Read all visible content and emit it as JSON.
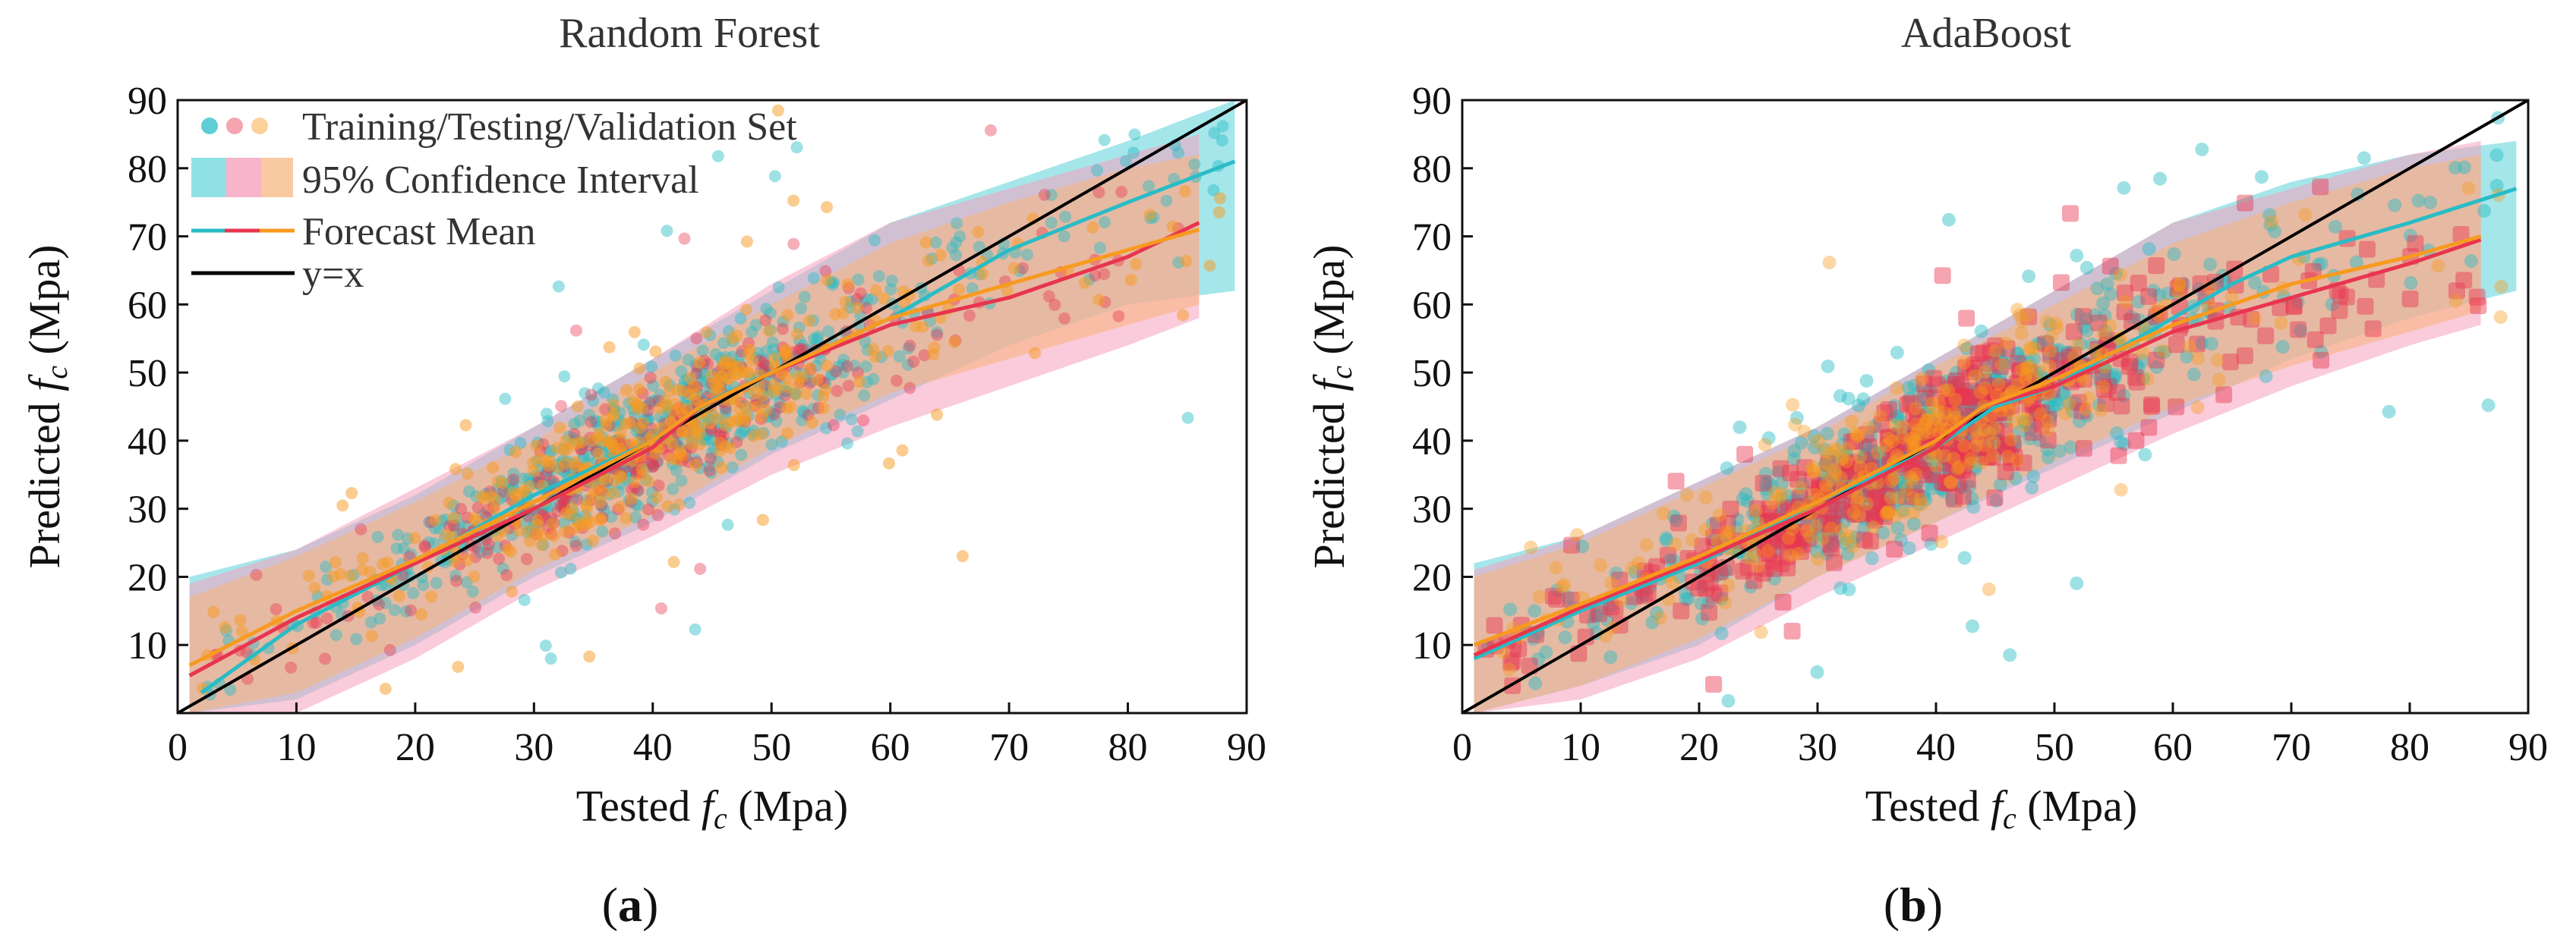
{
  "chart_data": [
    {
      "type": "scatter",
      "title": "Random Forest",
      "panel_label": {
        "open": "(",
        "letter": "a",
        "close": ")"
      },
      "xlabel": {
        "pre": "Tested ",
        "sym": "f",
        "sub": "c",
        "post": " (Mpa)"
      },
      "ylabel": {
        "pre": "Predicted ",
        "sym": "f",
        "sub": "c",
        "post": " (Mpa)"
      },
      "xlim": [
        0,
        90
      ],
      "ylim": [
        0,
        90
      ],
      "x_ticks": [
        "0",
        "10",
        "20",
        "30",
        "40",
        "50",
        "60",
        "70",
        "80",
        "90"
      ],
      "y_ticks": [
        "10",
        "20",
        "30",
        "40",
        "50",
        "60",
        "70",
        "80",
        "90"
      ],
      "legend": [
        "Training/Testing/Validation Set",
        "95% Confidence Interval",
        "Forecast Mean",
        "y=x"
      ],
      "series": [
        {
          "name": "Training forecast mean",
          "color": "#29bcc6",
          "mean": [
            [
              2,
              3
            ],
            [
              10,
              13
            ],
            [
              20,
              22
            ],
            [
              30,
              32
            ],
            [
              40,
              40
            ],
            [
              45,
              46
            ],
            [
              50,
              50
            ],
            [
              55,
              54
            ],
            [
              60,
              58
            ],
            [
              65,
              63
            ],
            [
              70,
              68
            ],
            [
              80,
              75
            ],
            [
              89,
              81
            ]
          ],
          "band_upper": [
            [
              1,
              20
            ],
            [
              10,
              24
            ],
            [
              20,
              32
            ],
            [
              30,
              42
            ],
            [
              40,
              52
            ],
            [
              50,
              62
            ],
            [
              60,
              72
            ],
            [
              70,
              78
            ],
            [
              80,
              84
            ],
            [
              89,
              90
            ]
          ],
          "band_lower": [
            [
              1,
              0
            ],
            [
              10,
              2
            ],
            [
              20,
              10
            ],
            [
              30,
              20
            ],
            [
              40,
              28
            ],
            [
              50,
              38
            ],
            [
              60,
              46
            ],
            [
              70,
              54
            ],
            [
              80,
              60
            ],
            [
              89,
              62
            ]
          ]
        },
        {
          "name": "Testing forecast mean",
          "color": "#e8354f",
          "mean": [
            [
              1,
              5.5
            ],
            [
              10,
              14
            ],
            [
              20,
              22
            ],
            [
              30,
              30
            ],
            [
              40,
              39
            ],
            [
              44,
              45
            ],
            [
              50,
              50
            ],
            [
              60,
              57
            ],
            [
              70,
              61
            ],
            [
              80,
              67
            ],
            [
              86,
              72
            ]
          ],
          "band_upper": [
            [
              1,
              19
            ],
            [
              10,
              24
            ],
            [
              20,
              33
            ],
            [
              30,
              42
            ],
            [
              40,
              52
            ],
            [
              50,
              63
            ],
            [
              60,
              72
            ],
            [
              70,
              77
            ],
            [
              80,
              82
            ],
            [
              86,
              85
            ]
          ],
          "band_lower": [
            [
              1,
              0
            ],
            [
              10,
              0
            ],
            [
              20,
              8
            ],
            [
              30,
              18
            ],
            [
              40,
              26
            ],
            [
              50,
              35
            ],
            [
              60,
              42
            ],
            [
              70,
              48
            ],
            [
              80,
              54
            ],
            [
              86,
              58
            ]
          ]
        },
        {
          "name": "Validation forecast mean",
          "color": "#f79a1f",
          "mean": [
            [
              1,
              7
            ],
            [
              10,
              15
            ],
            [
              20,
              22.5
            ],
            [
              30,
              31
            ],
            [
              40,
              40
            ],
            [
              44,
              45
            ],
            [
              50,
              50
            ],
            [
              60,
              58
            ],
            [
              70,
              63
            ],
            [
              80,
              68
            ],
            [
              86,
              71
            ]
          ],
          "band_upper": [
            [
              1,
              17
            ],
            [
              10,
              23
            ],
            [
              20,
              31
            ],
            [
              30,
              40
            ],
            [
              40,
              50
            ],
            [
              50,
              60
            ],
            [
              60,
              69
            ],
            [
              70,
              75
            ],
            [
              80,
              80
            ],
            [
              86,
              82
            ]
          ],
          "band_lower": [
            [
              1,
              0
            ],
            [
              10,
              3
            ],
            [
              20,
              11
            ],
            [
              30,
              21
            ],
            [
              40,
              29
            ],
            [
              50,
              39
            ],
            [
              60,
              47
            ],
            [
              70,
              52
            ],
            [
              80,
              57
            ],
            [
              86,
              60
            ]
          ]
        }
      ]
    },
    {
      "type": "scatter",
      "title": "AdaBoost",
      "panel_label": {
        "open": "(",
        "letter": "b",
        "close": ")"
      },
      "xlabel": {
        "pre": "Tested ",
        "sym": "f",
        "sub": "c",
        "post": " (Mpa)"
      },
      "ylabel": {
        "pre": "Predicted ",
        "sym": "f",
        "sub": "c",
        "post": " (Mpa)"
      },
      "xlim": [
        0,
        90
      ],
      "ylim": [
        0,
        90
      ],
      "x_ticks": [
        "0",
        "10",
        "20",
        "30",
        "40",
        "50",
        "60",
        "70",
        "80",
        "90"
      ],
      "y_ticks": [
        "10",
        "20",
        "30",
        "40",
        "50",
        "60",
        "70",
        "80",
        "90"
      ],
      "series": [
        {
          "name": "Training forecast mean",
          "color": "#29bcc6",
          "mean": [
            [
              1,
              8
            ],
            [
              10,
              15
            ],
            [
              20,
              22
            ],
            [
              30,
              31
            ],
            [
              40,
              39
            ],
            [
              45,
              45
            ],
            [
              50,
              48
            ],
            [
              55,
              53
            ],
            [
              60,
              58
            ],
            [
              65,
              63
            ],
            [
              70,
              67
            ],
            [
              80,
              72
            ],
            [
              89,
              77
            ]
          ],
          "band_upper": [
            [
              1,
              22
            ],
            [
              10,
              26
            ],
            [
              20,
              34
            ],
            [
              30,
              42
            ],
            [
              40,
              52
            ],
            [
              50,
              62
            ],
            [
              60,
              72
            ],
            [
              70,
              78
            ],
            [
              80,
              82
            ],
            [
              89,
              84
            ]
          ],
          "band_lower": [
            [
              1,
              0
            ],
            [
              10,
              4
            ],
            [
              20,
              10
            ],
            [
              30,
              20
            ],
            [
              40,
              28
            ],
            [
              50,
              36
            ],
            [
              60,
              44
            ],
            [
              70,
              52
            ],
            [
              80,
              58
            ],
            [
              89,
              62
            ]
          ]
        },
        {
          "name": "Testing forecast mean",
          "color": "#e8354f",
          "mean": [
            [
              1,
              8.5
            ],
            [
              10,
              15.5
            ],
            [
              20,
              22.5
            ],
            [
              30,
              30
            ],
            [
              40,
              39
            ],
            [
              44,
              45
            ],
            [
              50,
              48
            ],
            [
              60,
              56
            ],
            [
              70,
              61
            ],
            [
              80,
              66
            ],
            [
              86,
              69.5
            ]
          ],
          "band_upper": [
            [
              1,
              21
            ],
            [
              10,
              26
            ],
            [
              20,
              34
            ],
            [
              30,
              42
            ],
            [
              40,
              52
            ],
            [
              50,
              62
            ],
            [
              60,
              72
            ],
            [
              70,
              77
            ],
            [
              80,
              82
            ],
            [
              86,
              84
            ]
          ],
          "band_lower": [
            [
              1,
              0
            ],
            [
              10,
              2
            ],
            [
              20,
              8
            ],
            [
              30,
              17
            ],
            [
              40,
              25
            ],
            [
              50,
              33
            ],
            [
              60,
              41
            ],
            [
              70,
              48
            ],
            [
              80,
              54
            ],
            [
              86,
              57
            ]
          ]
        },
        {
          "name": "Validation forecast mean",
          "color": "#f79a1f",
          "mean": [
            [
              1,
              10
            ],
            [
              10,
              16
            ],
            [
              20,
              23
            ],
            [
              30,
              31
            ],
            [
              40,
              40
            ],
            [
              44,
              45
            ],
            [
              50,
              49
            ],
            [
              60,
              57
            ],
            [
              70,
              63
            ],
            [
              80,
              67
            ],
            [
              86,
              70
            ]
          ],
          "band_upper": [
            [
              1,
              20
            ],
            [
              10,
              25
            ],
            [
              20,
              33
            ],
            [
              30,
              41
            ],
            [
              40,
              51
            ],
            [
              50,
              60
            ],
            [
              60,
              69
            ],
            [
              70,
              75
            ],
            [
              80,
              80
            ],
            [
              86,
              82
            ]
          ],
          "band_lower": [
            [
              1,
              0
            ],
            [
              10,
              4
            ],
            [
              20,
              11
            ],
            [
              30,
              20
            ],
            [
              40,
              28
            ],
            [
              50,
              37
            ],
            [
              60,
              45
            ],
            [
              70,
              51
            ],
            [
              80,
              56
            ],
            [
              86,
              59
            ]
          ]
        }
      ]
    }
  ],
  "colors": {
    "training": "#29bcc6",
    "testing": "#e8354f",
    "validation": "#f79a1f",
    "band_training": "#74d9df",
    "band_testing": "#f6a1bd",
    "band_validation": "#f7b27a",
    "identity": "#000000"
  }
}
